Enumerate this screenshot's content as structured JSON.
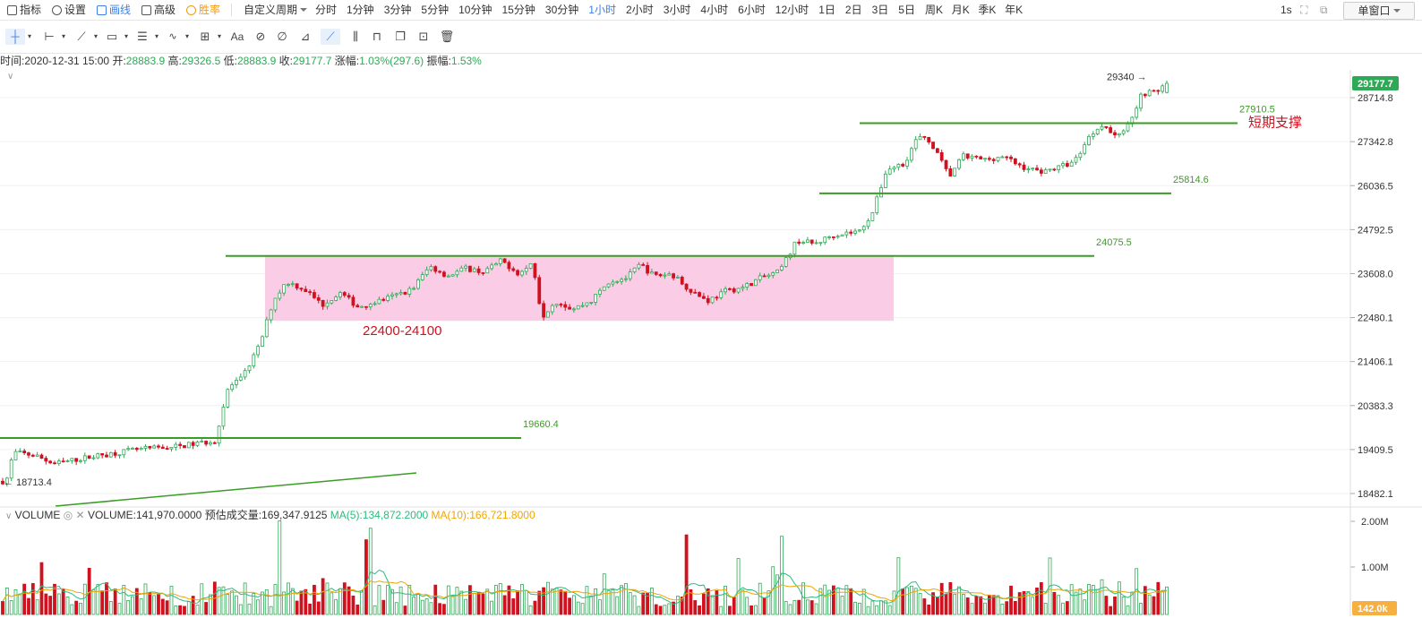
{
  "toolbar": {
    "left_items": [
      {
        "label": "指标",
        "icon": "chart-indicator-icon"
      },
      {
        "label": "设置",
        "icon": "gear-icon"
      },
      {
        "label": "画线",
        "icon": "pencil-icon"
      },
      {
        "label": "高级",
        "icon": "advanced-icon"
      },
      {
        "label": "胜率",
        "icon": "winrate-icon"
      }
    ],
    "custom_period": "自定义周期",
    "periods": [
      "分时",
      "1分钟",
      "3分钟",
      "5分钟",
      "10分钟",
      "15分钟",
      "30分钟",
      "1小时",
      "2小时",
      "3小时",
      "4小时",
      "6小时",
      "12小时",
      "1日",
      "2日",
      "3日",
      "5日",
      "周K",
      "月K",
      "季K",
      "年K"
    ],
    "active_period": "1小时",
    "refresh": "1s",
    "window_mode": "单窗口"
  },
  "info": {
    "time_label": "时间:",
    "time": "2020-12-31 15:00",
    "open_label": "开:",
    "open": "28883.9",
    "high_label": "高:",
    "high": "29326.5",
    "low_label": "低:",
    "low": "28883.9",
    "close_label": "收:",
    "close": "29177.7",
    "change_label": "涨幅:",
    "change": "1.03%(297.6)",
    "amplitude_label": "振幅:",
    "amplitude": "1.53%"
  },
  "volume_info": {
    "name": "VOLUME",
    "volume": "VOLUME:141,970.0000",
    "estimated": "预估成交量:169,347.9125",
    "ma5": "MA(5):134,872.2000",
    "ma10": "MA(10):166,721.8000"
  },
  "colors": {
    "up": "#2eaa56",
    "down": "#d0111e",
    "line": "#3a9d23",
    "zone": "#f9c6e3",
    "ma5": "#2dbb7f",
    "ma10": "#f0a500",
    "price_tag": "#2eaa56",
    "vol_tag": "#f5b041"
  },
  "chart_data": {
    "type": "candlestick",
    "y_ticks": [
      "28714.8",
      "27342.8",
      "26036.5",
      "24792.5",
      "23608.0",
      "22480.1",
      "21406.1",
      "20383.3",
      "19409.5",
      "18482.1"
    ],
    "vol_ticks": [
      "2.00M",
      "1.00M"
    ],
    "current_price": "29177.7",
    "current_volume": "142.0k",
    "ylim": [
      18400,
      29500
    ],
    "high_annotation": "29340",
    "low_annotation": "18713.4",
    "levels": [
      {
        "label": "27910.5",
        "value": 27910.5,
        "note": "短期支撑"
      },
      {
        "label": "25814.6",
        "value": 25814.6,
        "note": ""
      },
      {
        "label": "24075.5",
        "value": 24075.5,
        "note": ""
      },
      {
        "label": "19660.4",
        "value": 19660.4,
        "note": ""
      }
    ],
    "zone": {
      "label": "22400-24100",
      "low": 22400,
      "high": 24100
    },
    "path": [
      [
        0,
        18700
      ],
      [
        8,
        18800
      ],
      [
        15,
        19350
      ],
      [
        40,
        19280
      ],
      [
        60,
        19100
      ],
      [
        100,
        19250
      ],
      [
        150,
        19400
      ],
      [
        200,
        19480
      ],
      [
        240,
        19600
      ],
      [
        255,
        20800
      ],
      [
        270,
        21000
      ],
      [
        290,
        21800
      ],
      [
        305,
        22900
      ],
      [
        320,
        23400
      ],
      [
        340,
        23200
      ],
      [
        360,
        22800
      ],
      [
        380,
        23100
      ],
      [
        400,
        22750
      ],
      [
        430,
        22950
      ],
      [
        460,
        23200
      ],
      [
        480,
        23800
      ],
      [
        500,
        23550
      ],
      [
        520,
        23750
      ],
      [
        540,
        23650
      ],
      [
        560,
        23950
      ],
      [
        580,
        23600
      ],
      [
        595,
        23900
      ],
      [
        605,
        22500
      ],
      [
        620,
        22900
      ],
      [
        640,
        22700
      ],
      [
        660,
        22900
      ],
      [
        680,
        23400
      ],
      [
        700,
        23500
      ],
      [
        715,
        23850
      ],
      [
        730,
        23550
      ],
      [
        750,
        23600
      ],
      [
        770,
        23200
      ],
      [
        790,
        22900
      ],
      [
        810,
        23150
      ],
      [
        830,
        23250
      ],
      [
        850,
        23500
      ],
      [
        870,
        23650
      ],
      [
        890,
        24500
      ],
      [
        910,
        24400
      ],
      [
        930,
        24650
      ],
      [
        960,
        24750
      ],
      [
        975,
        25300
      ],
      [
        990,
        26500
      ],
      [
        1010,
        26700
      ],
      [
        1025,
        27500
      ],
      [
        1040,
        27300
      ],
      [
        1060,
        26300
      ],
      [
        1075,
        26900
      ],
      [
        1100,
        26800
      ],
      [
        1120,
        26900
      ],
      [
        1140,
        26600
      ],
      [
        1160,
        26450
      ],
      [
        1180,
        26550
      ],
      [
        1200,
        26750
      ],
      [
        1215,
        27450
      ],
      [
        1230,
        27900
      ],
      [
        1245,
        27500
      ],
      [
        1260,
        27850
      ],
      [
        1275,
        28850
      ],
      [
        1290,
        28900
      ],
      [
        1303,
        29177.7
      ]
    ],
    "candle_count": 270
  },
  "annotations": {
    "zone_label": "22400-24100",
    "support_note": "短期支撑"
  }
}
